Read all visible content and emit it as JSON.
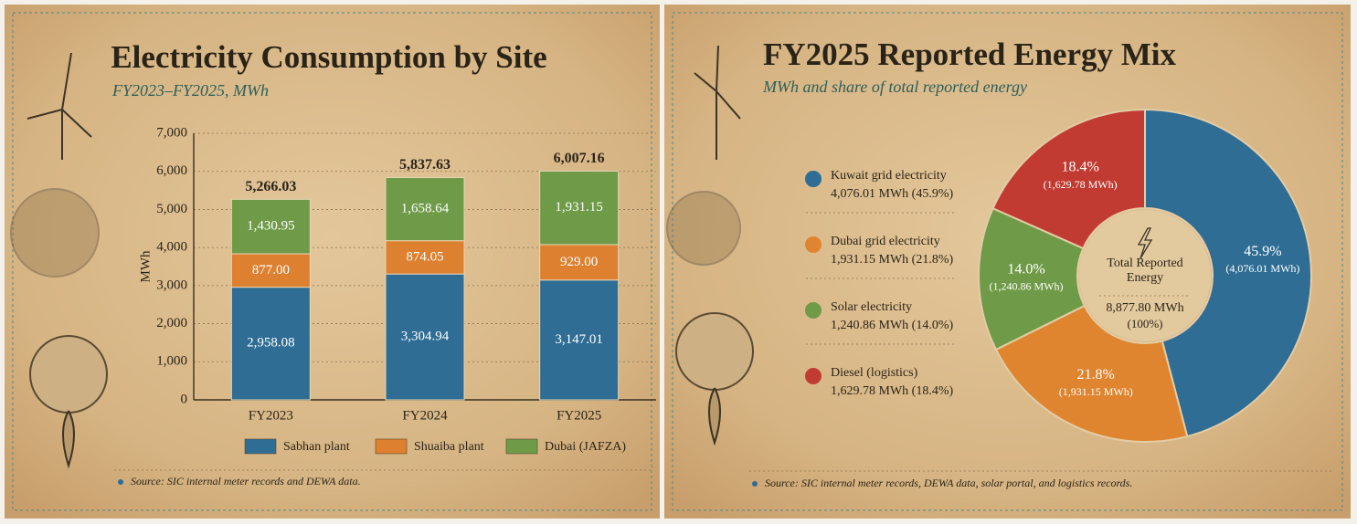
{
  "chart_data": [
    {
      "type": "bar",
      "title": "Electricity Consumption by Site",
      "subtitle": "FY2023–FY2025, MWh",
      "y_label": "MWh",
      "stacked": true,
      "categories": [
        "FY2023",
        "FY2024",
        "FY2025"
      ],
      "series": [
        {
          "name": "Sabhan plant",
          "color": "#2f6d94",
          "values": [
            2958.08,
            3304.94,
            3147.01
          ],
          "value_labels": [
            "2,958.08",
            "3,304.94",
            "3,147.01"
          ]
        },
        {
          "name": "Shuaiba plant",
          "color": "#dd8030",
          "values": [
            877.0,
            874.05,
            929.0
          ],
          "value_labels": [
            "877.00",
            "874.05",
            "929.00"
          ]
        },
        {
          "name": "Dubai (JAFZA)",
          "color": "#6f9b48",
          "values": [
            1430.95,
            1658.64,
            1931.15
          ],
          "value_labels": [
            "1,430.95",
            "1,658.64",
            "1,931.15"
          ]
        }
      ],
      "totals": [
        5266.03,
        5837.63,
        6007.16
      ],
      "total_labels": [
        "5,266.03",
        "5,837.63",
        "6,007.16"
      ],
      "ylim": [
        0,
        7000
      ],
      "yticks": [
        0,
        {
          "value": 1000,
          "label": "1,000"
        },
        {
          "value": 2000,
          "label": "2,000"
        },
        {
          "value": 3000,
          "label": "3,000"
        },
        {
          "value": 4000,
          "label": "4,000"
        },
        {
          "value": 5000,
          "label": "5,000"
        },
        {
          "value": 6000,
          "label": "6,000"
        },
        {
          "value": 7000,
          "label": "7,000"
        }
      ],
      "grid": true,
      "source": "Source: SIC internal meter records and DEWA data."
    },
    {
      "type": "donut",
      "title": "FY2025 Reported Energy Mix",
      "subtitle": "MWh and share of total reported energy",
      "categories": [
        "Kuwait grid electricity",
        "Dubai grid electricity",
        "Solar electricity",
        "Diesel (logistics)"
      ],
      "colors": [
        "#2f6d94",
        "#e0852f",
        "#6f9b48",
        "#c23b32"
      ],
      "values": [
        4076.01,
        1931.15,
        1240.86,
        1629.78
      ],
      "value_labels": [
        "(4,076.01 MWh)",
        "(1,931.15 MWh)",
        "(1,240.86 MWh)",
        "(1,629.78 MWh)"
      ],
      "shares": [
        45.9,
        21.8,
        14.0,
        18.4
      ],
      "share_labels": [
        "45.9%",
        "21.8%",
        "14.0%",
        "18.4%"
      ],
      "legend_details": [
        "4,076.01 MWh (45.9%)",
        "1,931.15 MWh (21.8%)",
        "1,240.86 MWh (14.0%)",
        "1,629.78 MWh (18.4%)"
      ],
      "center_title": "Total Reported Energy",
      "total": 8877.8,
      "total_label": "8,877.80 MWh",
      "total_share_label": "(100%)",
      "source": "Source: SIC internal meter records, DEWA data, solar portal, and logistics records."
    }
  ]
}
